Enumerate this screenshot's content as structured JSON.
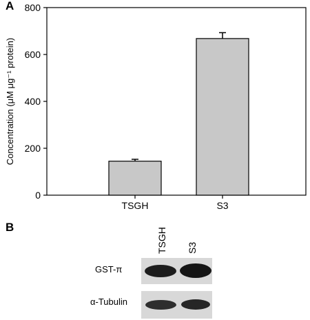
{
  "panel_a_label": "A",
  "panel_b_label": "B",
  "chart_data": {
    "type": "bar",
    "categories": [
      "TSGH",
      "S3"
    ],
    "values": [
      145,
      668
    ],
    "errors": [
      8,
      25
    ],
    "ylabel": "Concentration (μM μg⁻¹ protein)",
    "ylim": [
      0,
      800
    ],
    "yticks": [
      0,
      200,
      400,
      600,
      800
    ],
    "bar_color": "#c8c8c8",
    "grid": false
  },
  "blot": {
    "lanes": [
      "TSGH",
      "S3"
    ],
    "rows": [
      {
        "label": "GST-π"
      },
      {
        "label": "α-Tubulin"
      }
    ]
  }
}
